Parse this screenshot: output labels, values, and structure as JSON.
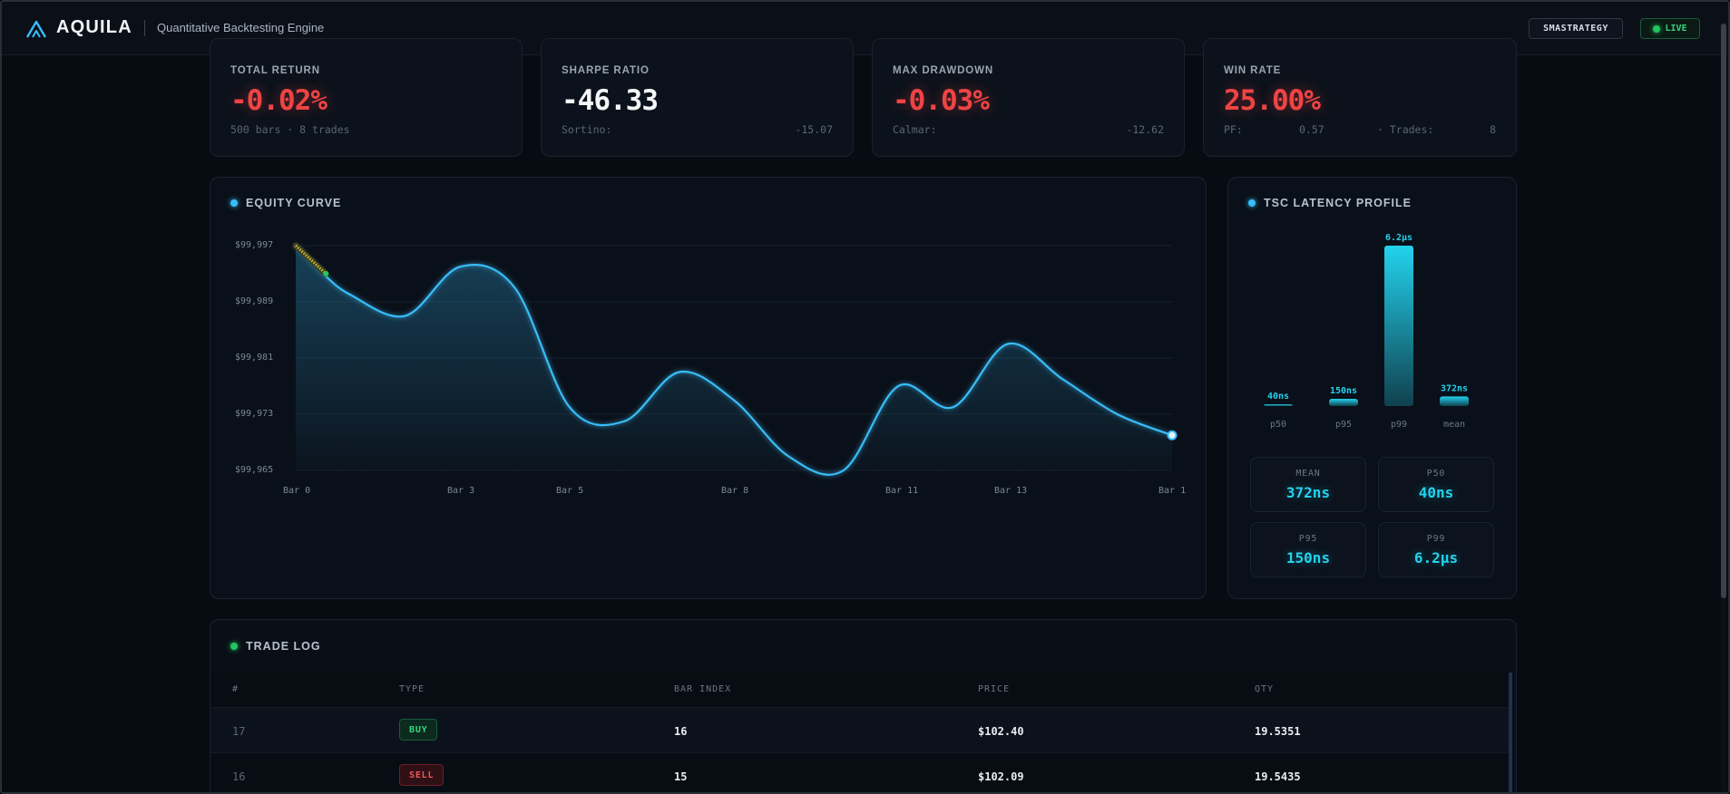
{
  "header": {
    "brand": "AQUILA",
    "subtitle": "Quantitative Backtesting Engine",
    "strategy_label": "SMASTRATEGY",
    "status_label": "LIVE"
  },
  "stats": [
    {
      "label": "TOTAL RETURN",
      "value": "-0.02%",
      "sub": "500 bars · 8 trades",
      "sub_value": ""
    },
    {
      "label": "SHARPE RATIO",
      "value": "-46.33",
      "sub": "Sortino:",
      "sub_value": "-15.07"
    },
    {
      "label": "MAX DRAWDOWN",
      "value": "-0.03%",
      "sub": "Calmar:",
      "sub_value": "-12.62"
    },
    {
      "label": "WIN RATE",
      "value": "25.00%",
      "sub": "PF:",
      "sub_value": "0.57",
      "sub2": "· Trades:",
      "sub2_value": "8"
    }
  ],
  "equity": {
    "title": "EQUITY CURVE",
    "y_ticks": [
      "$99,997",
      "$99,989",
      "$99,981",
      "$99,973",
      "$99,965"
    ],
    "x_ticks": [
      "Bar 0",
      "Bar 3",
      "Bar 5",
      "Bar 8",
      "Bar 11",
      "Bar 13",
      "Bar 1"
    ]
  },
  "latency": {
    "title": "TSC LATENCY PROFILE",
    "tiles": [
      {
        "label": "MEAN",
        "value": "372ns"
      },
      {
        "label": "P50",
        "value": "40ns"
      },
      {
        "label": "P95",
        "value": "150ns"
      },
      {
        "label": "P99",
        "value": "6.2µs"
      }
    ]
  },
  "trade_log": {
    "title": "TRADE LOG",
    "columns": [
      "#",
      "TYPE",
      "BAR INDEX",
      "PRICE",
      "QTY"
    ],
    "rows": [
      {
        "id": "17",
        "type": "BUY",
        "bar": "16",
        "price": "$102.40",
        "qty": "19.5351"
      },
      {
        "id": "16",
        "type": "SELL",
        "bar": "15",
        "price": "$102.09",
        "qty": "19.5435"
      }
    ]
  },
  "colors": {
    "accent": "#38bdf8",
    "cyan": "#22d3ee",
    "negative": "#ef4444",
    "positive": "#22c55e",
    "background": "#070b12"
  },
  "chart_data": [
    {
      "type": "area",
      "title": "EQUITY CURVE",
      "xlabel": "",
      "ylabel": "",
      "x": [
        0,
        0.5,
        1,
        2,
        3,
        4,
        5,
        6,
        7,
        8,
        9,
        10,
        11,
        12,
        13,
        14,
        15,
        16
      ],
      "x_tick_labels": [
        "Bar 0",
        "Bar 3",
        "Bar 5",
        "Bar 8",
        "Bar 11",
        "Bar 13",
        "Bar 1"
      ],
      "values": [
        99997,
        99993,
        99990,
        99987,
        99994,
        99991,
        99974,
        99972,
        99979,
        99975,
        99967,
        99965,
        99977,
        99974,
        99983,
        99978,
        99973,
        99970
      ],
      "ylim": [
        99965,
        99997
      ],
      "grid": true
    },
    {
      "type": "bar",
      "title": "TSC LATENCY PROFILE",
      "categories": [
        "p50",
        "p95",
        "p99",
        "mean"
      ],
      "values": [
        40,
        150,
        6200,
        372
      ],
      "value_labels": [
        "40ns",
        "150ns",
        "6.2µs",
        "372ns"
      ],
      "unit": "ns"
    }
  ]
}
